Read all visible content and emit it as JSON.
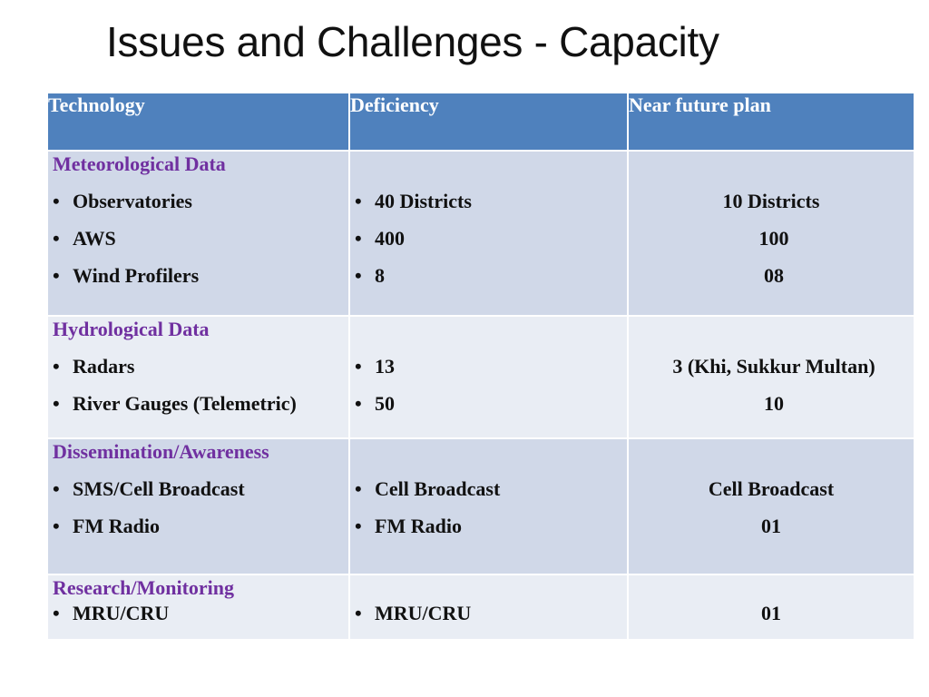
{
  "title": "Issues and Challenges - Capacity",
  "table": {
    "headers": [
      "Technology",
      "Deficiency",
      "Near future plan"
    ],
    "rows": [
      {
        "category": "Meteorological Data",
        "technology": [
          "Observatories",
          "AWS",
          "Wind Profilers"
        ],
        "deficiency": [
          "40 Districts",
          "400",
          "8"
        ],
        "plan": [
          "10 Districts",
          "100",
          "08"
        ]
      },
      {
        "category": "Hydrological Data",
        "technology": [
          "Radars",
          "River Gauges (Telemetric)"
        ],
        "deficiency": [
          "13",
          "50"
        ],
        "plan": [
          "3 (Khi, Sukkur Multan)",
          "10"
        ]
      },
      {
        "category": "Dissemination/Awareness",
        "technology": [
          "SMS/Cell Broadcast",
          "FM Radio"
        ],
        "deficiency": [
          "Cell Broadcast",
          "FM Radio"
        ],
        "plan": [
          "Cell Broadcast",
          "01"
        ]
      },
      {
        "category": "Research/Monitoring",
        "technology": [
          "MRU/CRU"
        ],
        "deficiency": [
          "MRU/CRU"
        ],
        "plan": [
          "01"
        ]
      }
    ],
    "bullet_glyph": "•"
  }
}
